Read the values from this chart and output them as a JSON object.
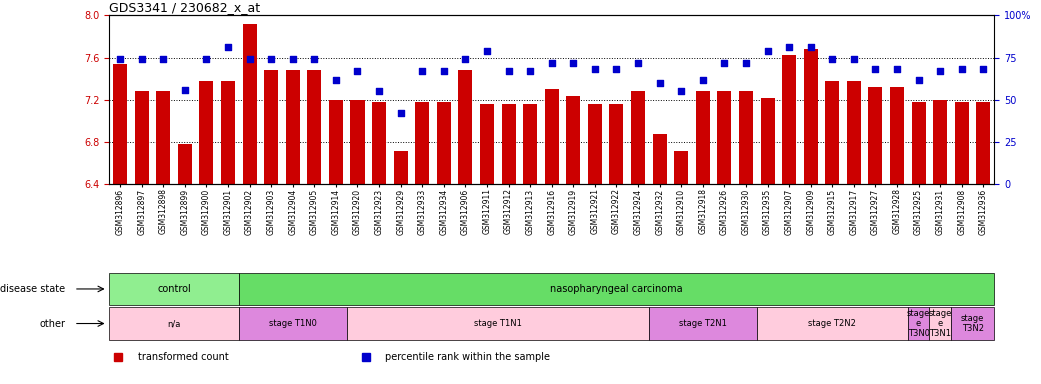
{
  "title": "GDS3341 / 230682_x_at",
  "samples": [
    "GSM312896",
    "GSM312897",
    "GSM312898",
    "GSM312899",
    "GSM312900",
    "GSM312901",
    "GSM312902",
    "GSM312903",
    "GSM312904",
    "GSM312905",
    "GSM312914",
    "GSM312920",
    "GSM312923",
    "GSM312929",
    "GSM312933",
    "GSM312934",
    "GSM312906",
    "GSM312911",
    "GSM312912",
    "GSM312913",
    "GSM312916",
    "GSM312919",
    "GSM312921",
    "GSM312922",
    "GSM312924",
    "GSM312932",
    "GSM312910",
    "GSM312918",
    "GSM312926",
    "GSM312930",
    "GSM312935",
    "GSM312907",
    "GSM312909",
    "GSM312915",
    "GSM312917",
    "GSM312927",
    "GSM312928",
    "GSM312925",
    "GSM312931",
    "GSM312908",
    "GSM312936"
  ],
  "bar_values": [
    7.54,
    7.28,
    7.28,
    6.78,
    7.38,
    7.38,
    7.92,
    7.48,
    7.48,
    7.48,
    7.2,
    7.2,
    7.18,
    6.72,
    7.18,
    7.18,
    7.48,
    7.16,
    7.16,
    7.16,
    7.3,
    7.24,
    7.16,
    7.16,
    7.28,
    6.88,
    6.72,
    7.28,
    7.28,
    7.28,
    7.22,
    7.62,
    7.68,
    7.38,
    7.38,
    7.32,
    7.32,
    7.18,
    7.2,
    7.18,
    7.18
  ],
  "percentile_values": [
    74,
    74,
    74,
    56,
    74,
    81,
    74,
    74,
    74,
    74,
    62,
    67,
    55,
    42,
    67,
    67,
    74,
    79,
    67,
    67,
    72,
    72,
    68,
    68,
    72,
    60,
    55,
    62,
    72,
    72,
    79,
    81,
    81,
    74,
    74,
    68,
    68,
    62,
    67,
    68,
    68
  ],
  "ylim": [
    6.4,
    8.0
  ],
  "yticks": [
    6.4,
    6.8,
    7.2,
    7.6,
    8.0
  ],
  "y2ticks": [
    0,
    25,
    50,
    75,
    100
  ],
  "y2labels": [
    "0",
    "25",
    "50",
    "75",
    "100%"
  ],
  "bar_color": "#cc0000",
  "dot_color": "#0000cc",
  "disease_state_groups": [
    {
      "label": "control",
      "start": 0,
      "end": 6,
      "color": "#90ee90"
    },
    {
      "label": "nasopharyngeal carcinoma",
      "start": 6,
      "end": 41,
      "color": "#66dd66"
    }
  ],
  "other_groups": [
    {
      "label": "n/a",
      "start": 0,
      "end": 6,
      "color": "#ffccdd"
    },
    {
      "label": "stage T1N0",
      "start": 6,
      "end": 11,
      "color": "#dd88dd"
    },
    {
      "label": "stage T1N1",
      "start": 11,
      "end": 25,
      "color": "#ffccdd"
    },
    {
      "label": "stage T2N1",
      "start": 25,
      "end": 30,
      "color": "#dd88dd"
    },
    {
      "label": "stage T2N2",
      "start": 30,
      "end": 37,
      "color": "#ffccdd"
    },
    {
      "label": "stage\ne\nT3N0",
      "start": 37,
      "end": 38,
      "color": "#dd88dd"
    },
    {
      "label": "stage\ne\nT3N1",
      "start": 38,
      "end": 39,
      "color": "#ffccdd"
    },
    {
      "label": "stage\nT3N2",
      "start": 39,
      "end": 41,
      "color": "#dd88dd"
    }
  ],
  "legend_items": [
    {
      "label": "transformed count",
      "color": "#cc0000"
    },
    {
      "label": "percentile rank within the sample",
      "color": "#0000cc"
    }
  ]
}
